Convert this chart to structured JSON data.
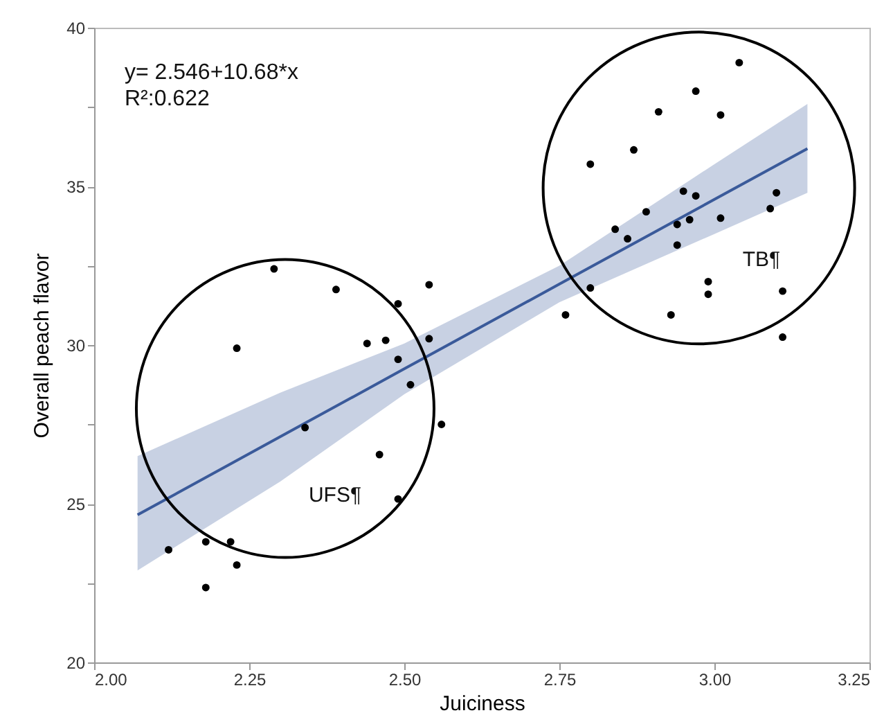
{
  "chart_data": {
    "type": "scatter",
    "xlabel": "Juiciness",
    "ylabel": "Overall peach flavor",
    "annotations": [
      "y= 2.546+10.68*x",
      "R²:0.622",
      "UFS¶",
      "TB¶"
    ],
    "xlim": [
      2.0,
      3.25
    ],
    "ylim": [
      20,
      40
    ],
    "xticks": [
      {
        "value": 2.0,
        "label": "2.00"
      },
      {
        "value": 2.25,
        "label": "2.25"
      },
      {
        "value": 2.5,
        "label": "2.50"
      },
      {
        "value": 2.75,
        "label": "2.75"
      },
      {
        "value": 3.0,
        "label": "3.00"
      },
      {
        "value": 3.25,
        "label": "3.25"
      }
    ],
    "yticks": [
      20,
      {
        "value": 22.5,
        "label": null
      },
      25,
      {
        "value": 27.5,
        "label": null
      },
      30,
      {
        "value": 32.5,
        "label": null
      },
      35,
      {
        "value": 37.5,
        "label": null
      },
      40
    ],
    "grid": false,
    "marker": "circle",
    "series": [
      {
        "color": "#000000",
        "x": [
          2.29,
          2.39,
          2.54,
          2.49,
          2.23,
          2.44,
          2.47,
          2.54,
          2.49,
          2.51,
          2.34,
          2.56,
          2.46,
          2.49,
          2.12,
          2.18,
          2.22,
          2.23,
          2.18,
          3.04,
          2.97,
          2.91,
          3.01,
          2.87,
          2.8,
          2.95,
          2.97,
          3.1,
          2.89,
          3.09,
          2.84,
          2.94,
          2.96,
          3.01,
          2.86,
          2.94,
          2.8,
          2.99,
          2.99,
          3.11,
          2.76,
          2.93,
          3.11
        ],
        "values": [
          32.4,
          31.75,
          31.9,
          31.3,
          29.9,
          30.05,
          30.15,
          30.2,
          29.55,
          28.75,
          27.4,
          27.5,
          26.55,
          25.15,
          23.55,
          23.8,
          23.8,
          23.07,
          22.36,
          38.9,
          38.0,
          37.35,
          37.25,
          36.15,
          35.7,
          34.85,
          34.7,
          34.8,
          34.2,
          34.3,
          33.65,
          33.8,
          33.95,
          34.0,
          33.35,
          33.15,
          31.8,
          32.0,
          31.6,
          31.7,
          30.95,
          30.95,
          30.25
        ]
      },
      {
        "type": "line",
        "color": "#3a5a9a",
        "line_style": "solid",
        "marker": "none",
        "x": [
          2.07,
          2.3,
          2.5,
          2.75,
          3.0,
          3.15
        ],
        "values": [
          24.65,
          27.11,
          29.25,
          31.92,
          34.59,
          36.19
        ],
        "lower": [
          22.9,
          25.7,
          28.45,
          31.35,
          33.5,
          34.8
        ],
        "upper": [
          26.5,
          28.5,
          30.05,
          32.5,
          35.7,
          37.6
        ]
      }
    ]
  }
}
